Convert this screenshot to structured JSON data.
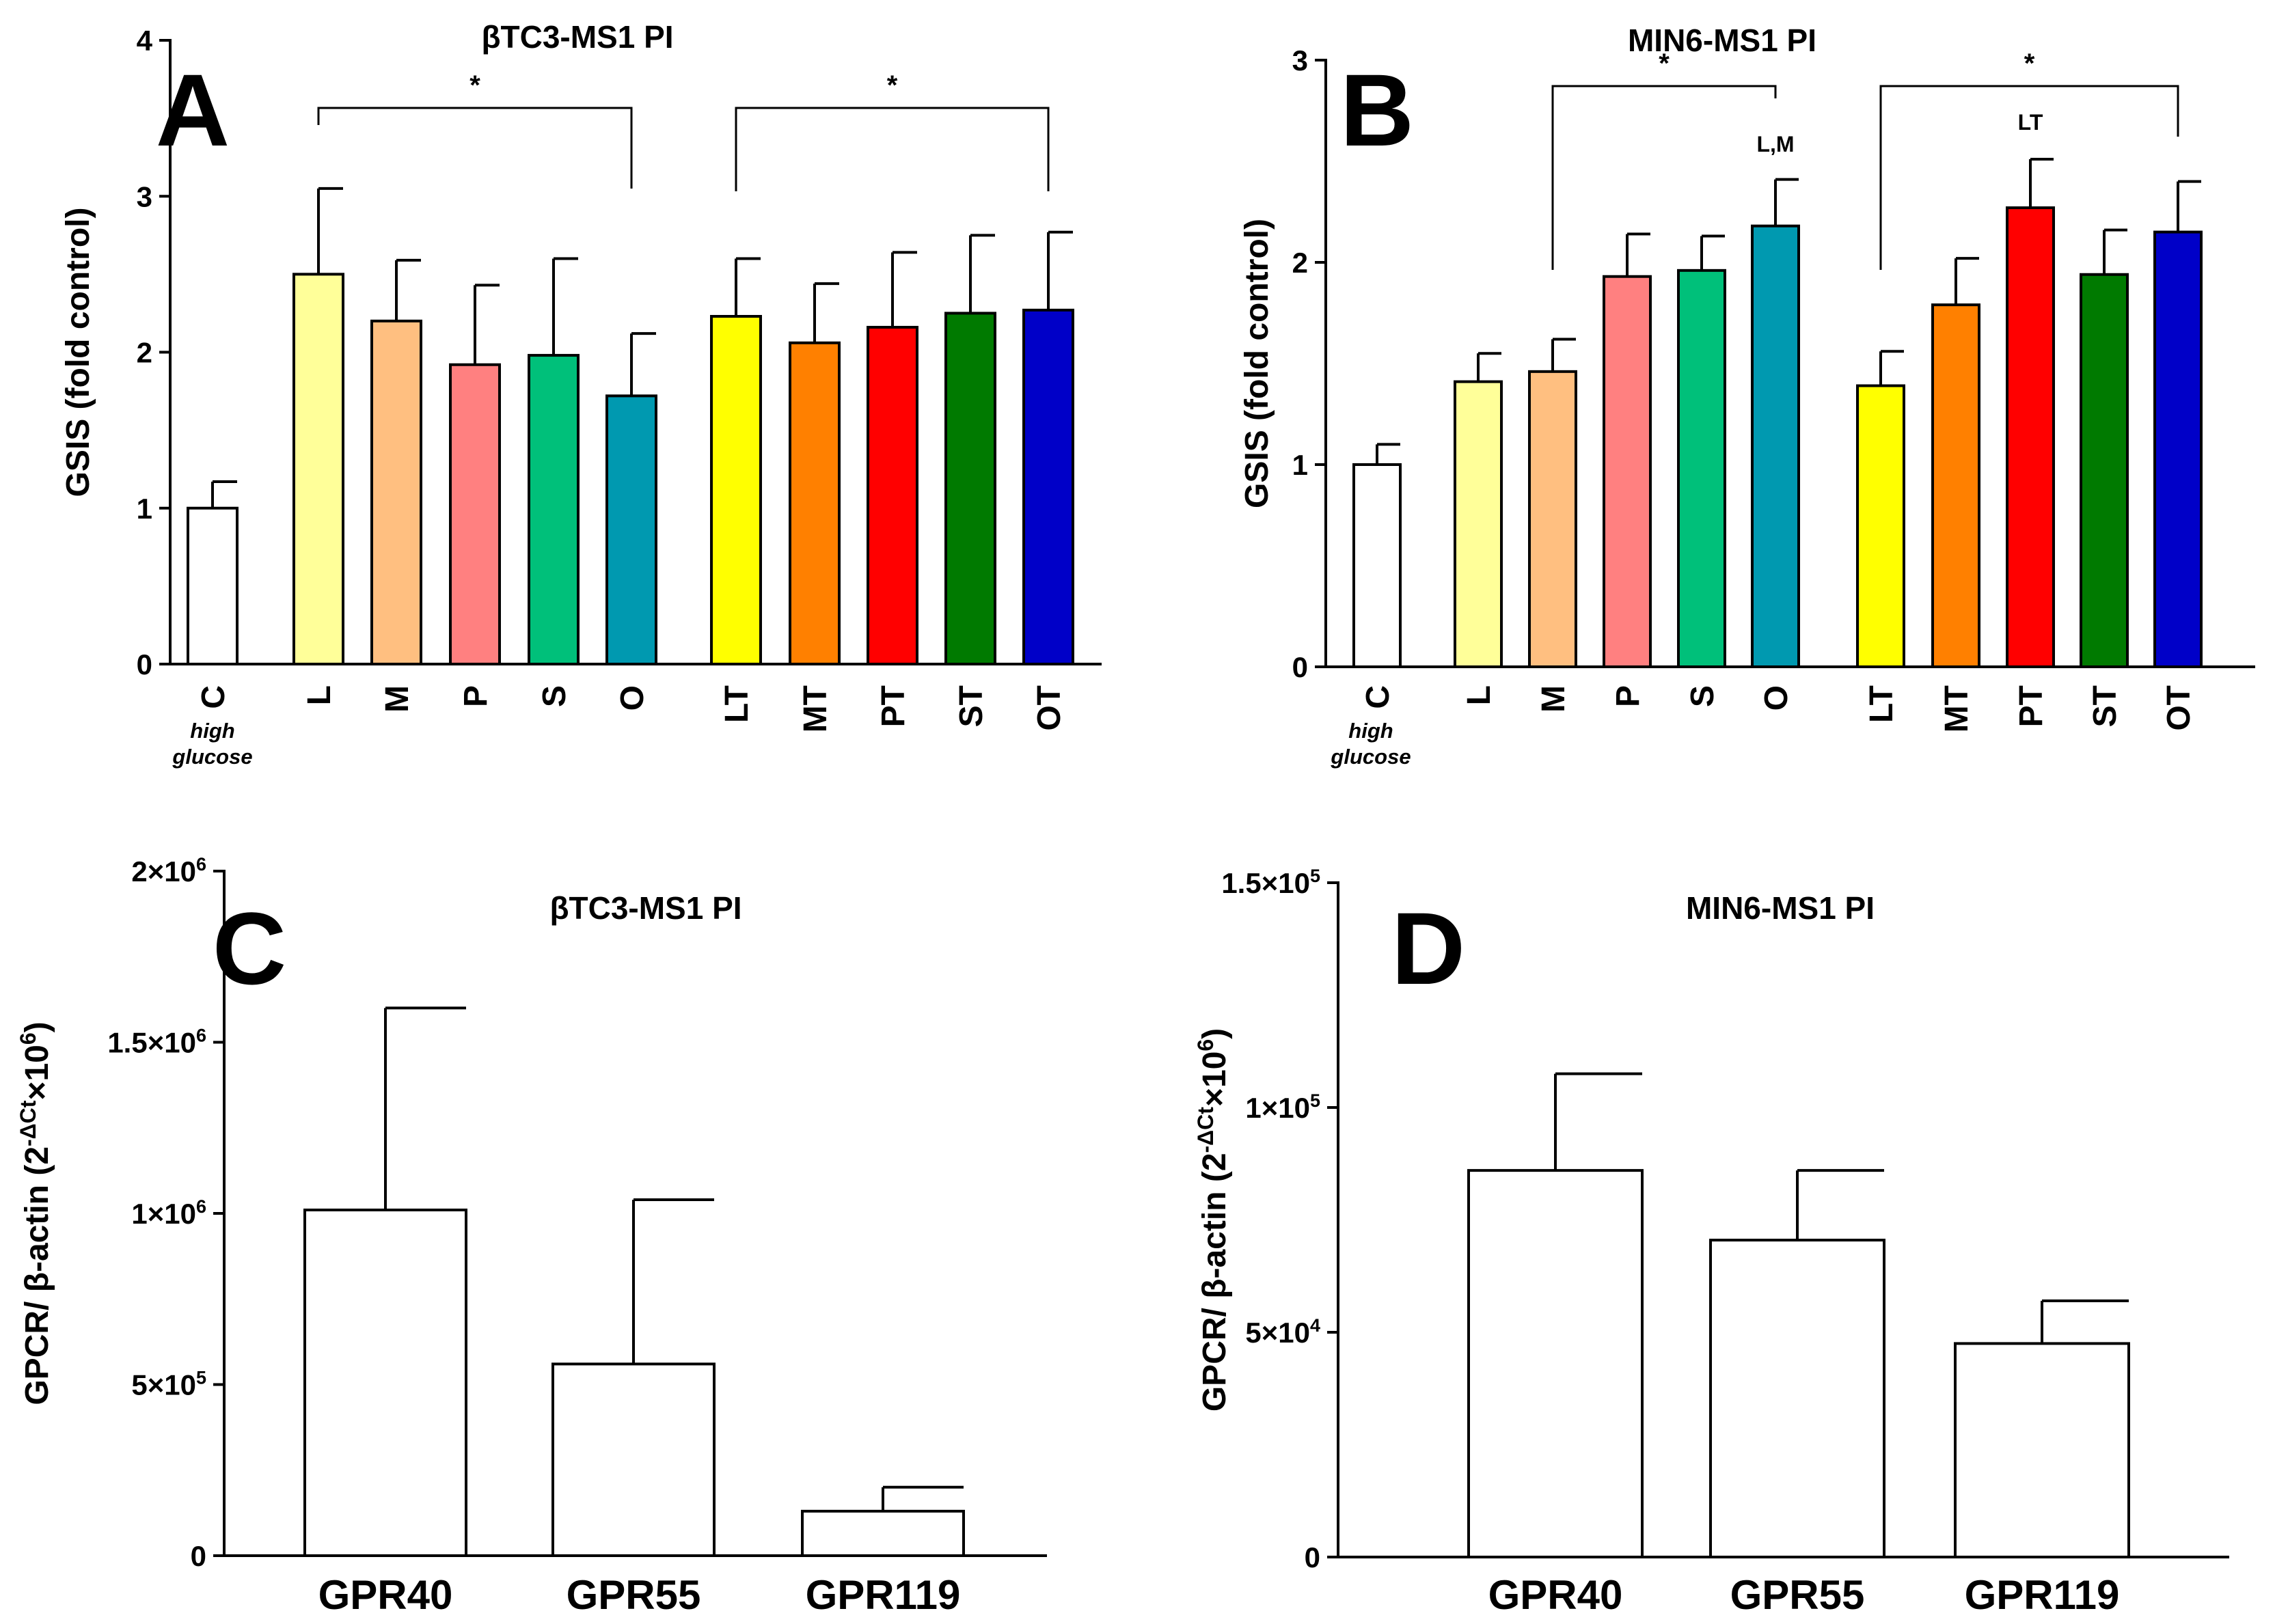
{
  "chart_data": [
    {
      "panel": "A",
      "type": "bar",
      "title": "βTC3-MS1 PI",
      "ylabel": "GSIS (fold control)",
      "ylim": [
        0,
        4
      ],
      "yticks": [
        "0",
        "1",
        "2",
        "3",
        "4"
      ],
      "x_note": [
        "high",
        "glucose"
      ],
      "categories": [
        "C",
        "L",
        "M",
        "P",
        "S",
        "O",
        "LT",
        "MT",
        "PT",
        "ST",
        "OT"
      ],
      "values": [
        1.0,
        2.5,
        2.2,
        1.92,
        1.98,
        1.72,
        2.23,
        2.06,
        2.16,
        2.25,
        2.27
      ],
      "errors": [
        0.17,
        0.55,
        0.39,
        0.51,
        0.62,
        0.4,
        0.37,
        0.38,
        0.48,
        0.5,
        0.5
      ],
      "colors": [
        "#ffffff",
        "#ffff99",
        "#ffbf80",
        "#ff8080",
        "#00c07a",
        "#0099b0",
        "#ffff00",
        "#ff8000",
        "#ff0000",
        "#007a00",
        "#0000c8"
      ],
      "brackets": [
        {
          "from": "L",
          "to": "O",
          "label": "*"
        },
        {
          "from": "LT",
          "to": "OT",
          "label": "*"
        }
      ],
      "bar_labels": []
    },
    {
      "panel": "B",
      "type": "bar",
      "title": "MIN6-MS1 PI",
      "ylabel": "GSIS (fold control)",
      "ylim": [
        0,
        3
      ],
      "yticks": [
        "0",
        "1",
        "2",
        "3"
      ],
      "x_note": [
        "high",
        "glucose"
      ],
      "categories": [
        "C",
        "L",
        "M",
        "P",
        "S",
        "O",
        "LT",
        "MT",
        "PT",
        "ST",
        "OT"
      ],
      "values": [
        1.0,
        1.41,
        1.46,
        1.93,
        1.96,
        2.18,
        1.39,
        1.79,
        2.27,
        1.94,
        2.15
      ],
      "errors": [
        0.1,
        0.14,
        0.16,
        0.21,
        0.17,
        0.23,
        0.17,
        0.23,
        0.24,
        0.22,
        0.25
      ],
      "colors": [
        "#ffffff",
        "#ffff99",
        "#ffbf80",
        "#ff8080",
        "#00c07a",
        "#0099b0",
        "#ffff00",
        "#ff8000",
        "#ff0000",
        "#007a00",
        "#0000c8"
      ],
      "brackets": [
        {
          "from": "M",
          "to": "O",
          "label": "*"
        },
        {
          "from": "LT",
          "to": "OT",
          "label": "*"
        }
      ],
      "bar_labels": [
        {
          "category": "O",
          "text": "L,M"
        },
        {
          "category": "PT",
          "text": "LT"
        }
      ]
    },
    {
      "panel": "C",
      "type": "bar",
      "title": "βTC3-MS1 PI",
      "ylabel": "GPCR/ β-actin (2^-ΔCt × 10^6)",
      "ylim": [
        0,
        2000000
      ],
      "yticks": [
        "0",
        "5×10⁵",
        "1×10⁶",
        "1.5×10⁶",
        "2×10⁶"
      ],
      "categories": [
        "GPR40",
        "GPR55",
        "GPR119"
      ],
      "values": [
        1010000,
        560000,
        130000
      ],
      "errors": [
        590000,
        480000,
        70000
      ],
      "colors": [
        "#ffffff",
        "#ffffff",
        "#ffffff"
      ]
    },
    {
      "panel": "D",
      "type": "bar",
      "title": "MIN6-MS1 PI",
      "ylabel": "GPCR/ β-actin (2^-ΔCt × 10^6)",
      "ylim": [
        0,
        150000
      ],
      "yticks": [
        "0",
        "5×10⁴",
        "1×10⁵",
        "1.5×10⁵"
      ],
      "categories": [
        "GPR40",
        "GPR55",
        "GPR119"
      ],
      "values": [
        86000,
        70500,
        47500
      ],
      "errors": [
        21500,
        15500,
        9500
      ],
      "colors": [
        "#ffffff",
        "#ffffff",
        "#ffffff"
      ]
    }
  ]
}
